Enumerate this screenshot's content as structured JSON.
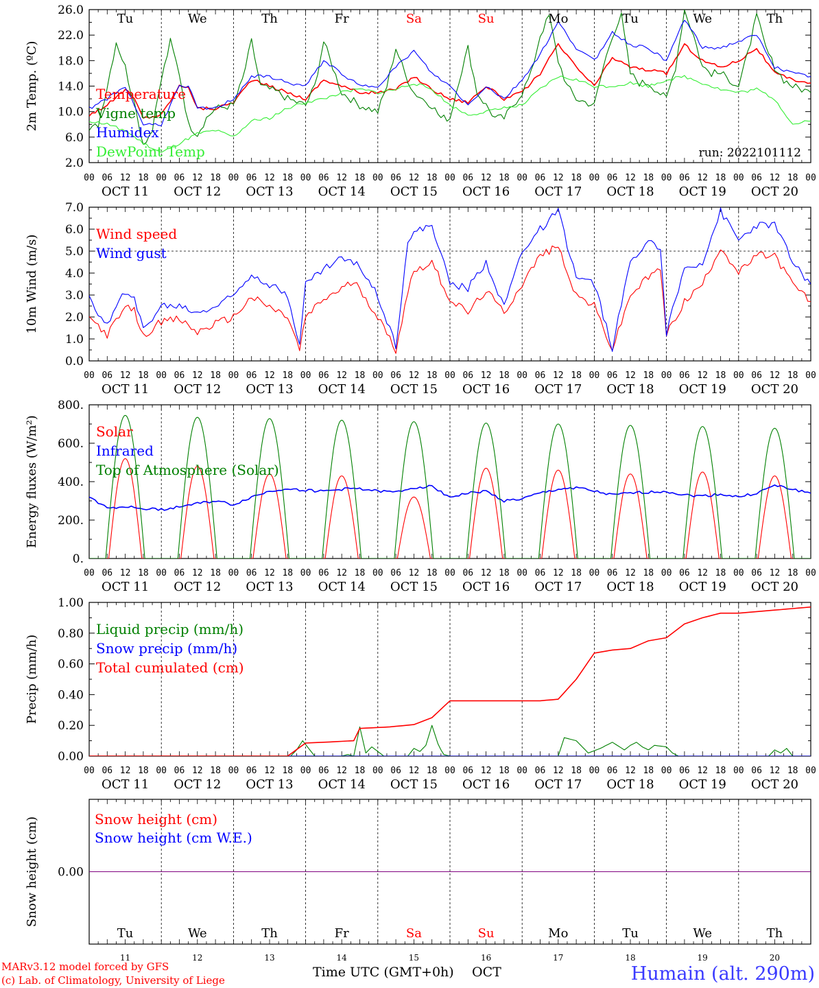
{
  "days": [
    "Tu",
    "We",
    "Th",
    "Fr",
    "Sa",
    "Su",
    "Mo",
    "Tu",
    "We",
    "Th"
  ],
  "weekend_flags": [
    false,
    false,
    false,
    false,
    true,
    true,
    false,
    false,
    false,
    false
  ],
  "dates": [
    "OCT 11",
    "OCT 12",
    "OCT 13",
    "OCT 14",
    "OCT 15",
    "OCT 16",
    "OCT 17",
    "OCT 18",
    "OCT 19",
    "OCT 20"
  ],
  "date_numbers": [
    "11",
    "12",
    "13",
    "14",
    "15",
    "16",
    "17",
    "18",
    "19",
    "20"
  ],
  "hour_ticks": [
    "00",
    "06",
    "12",
    "18"
  ],
  "final_hour": "00",
  "run_label": "run: 2022101112",
  "footer": {
    "credit_line1": "MARv3.12 model forced by GFS",
    "credit_line2": "(c) Lab. of Climatology, University of Liege",
    "xlabel": "Time UTC (GMT+0h)",
    "month": "OCT",
    "location": "Humain (alt. 290m)"
  },
  "colors": {
    "red": "#ff0000",
    "green": "#008000",
    "blue": "#0000ff",
    "lightgreen": "#33ee33",
    "purple": "#800080",
    "location_blue": "#3a3aff"
  },
  "chart_data": [
    {
      "type": "line",
      "id": "temp",
      "ylabel": "2m Temp. (ºC)",
      "ylim": [
        2,
        26
      ],
      "yticks": [
        "2.0",
        "6.0",
        "10.0",
        "14.0",
        "18.0",
        "22.0",
        "26.0"
      ],
      "x_unit": "hours since 2022-10-11 00 UTC",
      "xlim": [
        0,
        240
      ],
      "series": [
        {
          "name": "Temperature",
          "color": "red",
          "x": [
            0,
            6,
            12,
            15,
            18,
            24,
            30,
            33,
            36,
            42,
            48,
            54,
            60,
            66,
            72,
            78,
            84,
            90,
            96,
            102,
            108,
            114,
            120,
            126,
            132,
            138,
            144,
            150,
            156,
            162,
            168,
            174,
            180,
            186,
            192,
            198,
            204,
            210,
            216,
            222,
            228,
            234,
            240
          ],
          "y": [
            9.5,
            11,
            13.5,
            12,
            9,
            9.5,
            14,
            14,
            10.5,
            10.5,
            11.5,
            15,
            14,
            13,
            12,
            15,
            14,
            13,
            13,
            13.5,
            15.5,
            13.5,
            12,
            11.5,
            14,
            12,
            13,
            16,
            20.5,
            17,
            14,
            18.5,
            17,
            16.5,
            16,
            20.5,
            18,
            17,
            18,
            20,
            16,
            15,
            14.5
          ]
        },
        {
          "name": "Vigne temp",
          "color": "green",
          "x": [
            0,
            3,
            6,
            9,
            12,
            15,
            18,
            21,
            24,
            27,
            30,
            33,
            36,
            39,
            42,
            48,
            51,
            54,
            57,
            60,
            63,
            66,
            72,
            75,
            78,
            81,
            84,
            87,
            90,
            96,
            99,
            102,
            105,
            108,
            111,
            114,
            117,
            120,
            123,
            126,
            129,
            132,
            135,
            138,
            144,
            147,
            150,
            153,
            156,
            159,
            162,
            168,
            171,
            174,
            177,
            180,
            183,
            186,
            192,
            195,
            198,
            201,
            204,
            207,
            210,
            216,
            219,
            222,
            225,
            228,
            231,
            234,
            240
          ],
          "y": [
            7,
            8,
            14,
            21,
            17,
            11,
            5,
            7,
            15,
            21,
            16,
            8,
            6.5,
            9,
            10.5,
            11,
            15,
            21,
            14,
            13.5,
            13,
            12,
            11,
            14,
            21,
            17,
            13,
            12,
            11,
            10,
            14,
            20,
            16,
            13,
            12,
            11,
            9,
            9,
            15,
            20,
            13,
            11,
            9,
            9,
            13,
            16,
            22,
            25,
            18,
            14,
            12,
            11,
            17,
            22,
            25,
            16,
            14.5,
            14.5,
            12,
            17,
            26,
            22,
            17,
            16,
            16,
            14,
            19,
            25,
            20,
            17,
            15,
            14,
            13
          ]
        },
        {
          "name": "Humidex",
          "color": "blue",
          "x": [
            0,
            6,
            12,
            15,
            18,
            24,
            30,
            33,
            36,
            42,
            48,
            54,
            60,
            66,
            72,
            78,
            84,
            90,
            96,
            102,
            108,
            114,
            120,
            126,
            132,
            138,
            144,
            150,
            156,
            162,
            168,
            174,
            180,
            186,
            192,
            198,
            204,
            210,
            216,
            222,
            228,
            234,
            240
          ],
          "y": [
            10.5,
            12,
            14,
            11,
            8,
            8,
            14,
            14,
            10.5,
            10.5,
            12,
            15.5,
            15.5,
            14.5,
            14,
            18,
            16,
            14,
            14,
            17,
            19.5,
            16,
            14,
            11,
            14,
            12,
            15,
            19,
            24,
            20,
            18,
            22.5,
            20.5,
            20,
            18,
            24.5,
            20,
            20,
            21,
            22,
            17,
            16,
            15.5
          ]
        },
        {
          "name": "DewPoint Temp",
          "color": "lightgreen",
          "x": [
            0,
            6,
            12,
            18,
            24,
            30,
            36,
            42,
            48,
            54,
            60,
            66,
            72,
            78,
            84,
            90,
            96,
            102,
            108,
            114,
            120,
            126,
            132,
            138,
            144,
            150,
            156,
            162,
            168,
            174,
            180,
            186,
            192,
            198,
            204,
            210,
            216,
            222,
            228,
            234,
            240
          ],
          "y": [
            8.5,
            8,
            7,
            5,
            3.5,
            5,
            6.5,
            7,
            6,
            8.5,
            9,
            10.5,
            11.5,
            12,
            13,
            13.5,
            13,
            13.5,
            14.5,
            13.5,
            11,
            9.5,
            10,
            10.5,
            11,
            13.5,
            15.5,
            15,
            14,
            14,
            14.5,
            14,
            15,
            15.5,
            14.5,
            13.5,
            13,
            13.5,
            12,
            8,
            8.5
          ]
        }
      ]
    },
    {
      "type": "line",
      "id": "wind",
      "ylabel": "10m Wind (m/s)",
      "ylim": [
        0,
        7
      ],
      "yticks": [
        "0.0",
        "1.0",
        "2.0",
        "3.0",
        "4.0",
        "5.0",
        "6.0",
        "7.0"
      ],
      "reference_line": 5.0,
      "xlim": [
        0,
        240
      ],
      "series": [
        {
          "name": "Wind speed",
          "color": "red",
          "x": [
            0,
            6,
            12,
            15,
            18,
            24,
            30,
            36,
            42,
            48,
            54,
            66,
            70,
            72,
            78,
            84,
            88,
            90,
            96,
            102,
            106,
            108,
            114,
            120,
            126,
            132,
            138,
            144,
            150,
            156,
            162,
            168,
            174,
            180,
            186,
            190,
            192,
            198,
            204,
            210,
            216,
            222,
            228,
            234,
            240
          ],
          "y": [
            2.0,
            1.2,
            2.4,
            2.3,
            1.1,
            1.8,
            1.9,
            1.3,
            1.7,
            2.0,
            2.9,
            2.0,
            0.5,
            2.0,
            2.8,
            3.3,
            3.6,
            3.3,
            2.0,
            0.5,
            3.2,
            4.1,
            4.5,
            2.8,
            2.2,
            3.2,
            2.2,
            3.5,
            4.8,
            5.2,
            3.0,
            2.5,
            0.5,
            3.0,
            3.8,
            4.2,
            1.2,
            2.7,
            3.5,
            5.2,
            4.0,
            4.8,
            4.8,
            3.5,
            2.7
          ]
        },
        {
          "name": "Wind gust",
          "color": "blue",
          "x": [
            0,
            6,
            12,
            15,
            18,
            24,
            30,
            36,
            42,
            48,
            54,
            60,
            66,
            70,
            72,
            78,
            84,
            90,
            96,
            102,
            106,
            108,
            114,
            120,
            126,
            132,
            138,
            144,
            150,
            156,
            162,
            168,
            174,
            180,
            186,
            190,
            192,
            198,
            204,
            210,
            216,
            222,
            228,
            234,
            240
          ],
          "y": [
            2.8,
            1.6,
            3.2,
            3.0,
            1.4,
            2.5,
            2.5,
            2.2,
            2.5,
            3.0,
            4.0,
            3.5,
            3.0,
            0.8,
            3.5,
            4.2,
            4.7,
            4.3,
            3.0,
            0.7,
            5.5,
            5.8,
            6.2,
            3.5,
            3.3,
            4.5,
            2.5,
            5.0,
            6.0,
            6.8,
            3.8,
            3.5,
            0.6,
            4.5,
            5.6,
            5.0,
            1.3,
            4.2,
            4.5,
            6.8,
            5.5,
            6.2,
            6.2,
            4.5,
            3.5
          ]
        }
      ]
    },
    {
      "type": "line",
      "id": "energy",
      "ylabel": "Energy fluxes (W/m²)",
      "ylim": [
        0,
        800
      ],
      "yticks": [
        "0.",
        "200.",
        "400.",
        "600.",
        "800."
      ],
      "xlim": [
        0,
        240
      ],
      "series": [
        {
          "name": "Solar",
          "color": "red",
          "daily_peaks": [
            520,
            480,
            440,
            430,
            320,
            470,
            460,
            440,
            450,
            430
          ]
        },
        {
          "name": "Infrared",
          "color": "blue",
          "x": [
            0,
            6,
            12,
            18,
            24,
            30,
            36,
            42,
            48,
            54,
            60,
            66,
            72,
            78,
            84,
            90,
            96,
            102,
            108,
            114,
            120,
            126,
            132,
            138,
            144,
            150,
            156,
            162,
            168,
            174,
            180,
            186,
            192,
            198,
            204,
            210,
            216,
            222,
            228,
            234,
            240
          ],
          "y": [
            320,
            265,
            270,
            260,
            255,
            270,
            285,
            300,
            280,
            320,
            350,
            365,
            355,
            350,
            360,
            365,
            350,
            345,
            370,
            375,
            320,
            340,
            350,
            300,
            310,
            340,
            360,
            370,
            350,
            330,
            340,
            345,
            350,
            330,
            325,
            335,
            320,
            340,
            380,
            360,
            340
          ]
        },
        {
          "name": "Top of Atmosphere (Solar)",
          "color": "green",
          "daily_peaks": [
            745,
            735,
            728,
            720,
            712,
            705,
            700,
            693,
            687,
            678
          ]
        }
      ]
    },
    {
      "type": "line",
      "id": "precip",
      "ylabel": "Precip (mm/h)",
      "ylim": [
        0,
        1
      ],
      "yticks": [
        "0.00",
        "0.20",
        "0.40",
        "0.60",
        "0.80",
        "1.00"
      ],
      "xlim": [
        0,
        240
      ],
      "series": [
        {
          "name": "Liquid precip (mm/h)",
          "color": "green",
          "x": [
            0,
            67,
            69,
            71,
            73,
            75,
            84,
            86,
            88,
            90,
            92,
            94,
            96,
            98,
            106,
            108,
            110,
            112,
            114,
            116,
            117,
            118,
            120,
            156,
            158,
            160,
            162,
            164,
            166,
            170,
            174,
            178,
            180,
            182,
            184,
            186,
            188,
            192,
            194,
            196,
            200,
            226,
            228,
            230,
            232,
            234,
            240
          ],
          "y": [
            0,
            0,
            0.04,
            0.1,
            0.05,
            0,
            0,
            0.01,
            0,
            0.19,
            0.02,
            0.06,
            0.03,
            0,
            0,
            0.05,
            0.03,
            0.07,
            0.2,
            0.08,
            0.04,
            0.01,
            0,
            0,
            0.12,
            0.11,
            0.1,
            0.06,
            0.02,
            0.05,
            0.09,
            0.04,
            0.07,
            0.09,
            0.06,
            0.04,
            0.07,
            0.06,
            0.02,
            0,
            0,
            0,
            0.04,
            0.02,
            0.05,
            0,
            0
          ]
        },
        {
          "name": "Snow precip (mm/h)",
          "color": "blue",
          "x": [
            0,
            240
          ],
          "y": [
            0,
            0
          ]
        },
        {
          "name": "Total cumulated (cm)",
          "color": "red",
          "x": [
            0,
            66,
            72,
            78,
            88,
            90,
            100,
            108,
            114,
            120,
            150,
            156,
            162,
            168,
            174,
            180,
            186,
            192,
            198,
            204,
            210,
            216,
            222,
            240
          ],
          "y": [
            0,
            0,
            0.085,
            0.09,
            0.1,
            0.18,
            0.19,
            0.205,
            0.25,
            0.36,
            0.36,
            0.37,
            0.5,
            0.67,
            0.69,
            0.7,
            0.75,
            0.77,
            0.86,
            0.9,
            0.93,
            0.93,
            0.94,
            0.97
          ]
        }
      ]
    },
    {
      "type": "line",
      "id": "snow",
      "ylabel": "Snow height (cm)",
      "ylim": [
        -1,
        1
      ],
      "yticks": [
        "0.00"
      ],
      "xlim": [
        0,
        240
      ],
      "series": [
        {
          "name": "Snow height (cm)",
          "color": "red",
          "x": [
            0,
            240
          ],
          "y": [
            0,
            0
          ]
        },
        {
          "name": "Snow height (cm W.E.)",
          "color": "blue",
          "x": [
            0,
            240
          ],
          "y": [
            0,
            0
          ]
        }
      ]
    }
  ]
}
